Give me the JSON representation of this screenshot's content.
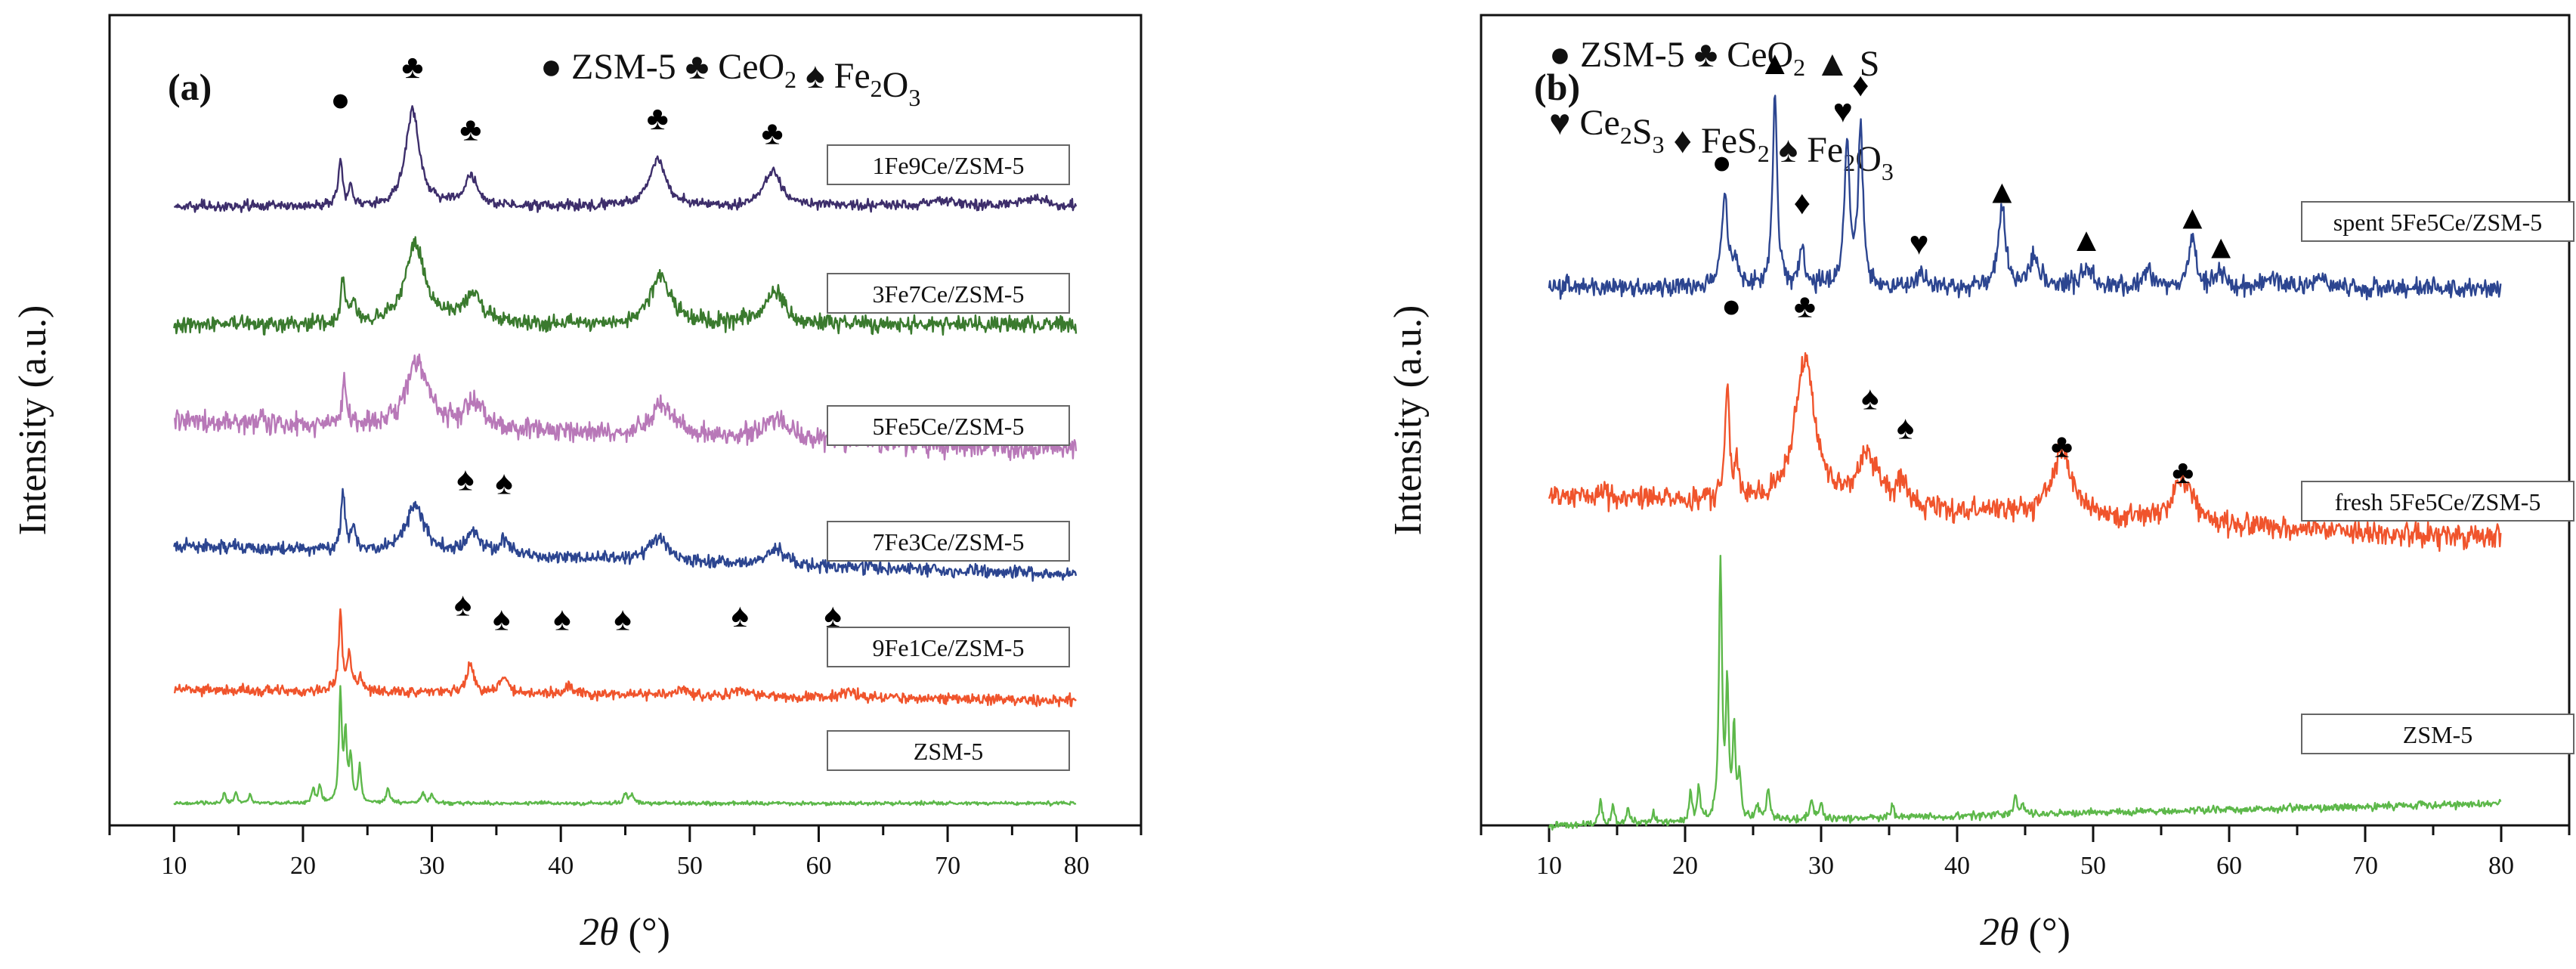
{
  "chart_data": [
    {
      "type": "line",
      "panel_label": "(a)",
      "xlabel_italic": "2θ",
      "xlabel_unit": " (°)",
      "ylabel": "Intensity (a.u.)",
      "xlim": [
        5,
        85
      ],
      "ylim": [
        0,
        110
      ],
      "x_ticks": [
        10,
        20,
        30,
        40,
        50,
        60,
        70,
        80
      ],
      "legend": [
        {
          "symbol": "●",
          "name": "ZSM-5"
        },
        {
          "symbol": "♣",
          "name": "CeO",
          "sub": "2"
        },
        {
          "symbol": "♠",
          "name": "Fe",
          "sub": "2",
          "name2": "O",
          "sub2": "3"
        }
      ],
      "series": [
        {
          "name": "1Fe9Ce/ZSM-5",
          "color": "#3d2e6b",
          "baseline": 84,
          "decay": 0,
          "noise": 0.7,
          "peaks": [
            [
              22.9,
              6.5,
              0.18
            ],
            [
              23.7,
              2.5,
              0.2
            ],
            [
              28.5,
              13,
              0.65
            ],
            [
              33.0,
              4,
              0.55
            ],
            [
              47.5,
              6.5,
              0.75
            ],
            [
              56.4,
              5,
              0.8
            ],
            [
              69.5,
              0.8,
              1.2
            ],
            [
              76.5,
              1,
              1.2
            ]
          ],
          "markers": [
            {
              "x": 22.9,
              "y": 97,
              "sym": "●"
            },
            {
              "x": 28.5,
              "y": 101.5,
              "sym": "♣"
            },
            {
              "x": 33.0,
              "y": 93,
              "sym": "♣"
            },
            {
              "x": 47.5,
              "y": 94.5,
              "sym": "♣"
            },
            {
              "x": 56.4,
              "y": 92.5,
              "sym": "♣"
            }
          ]
        },
        {
          "name": "3Fe7Ce/ZSM-5",
          "color": "#3a7a2e",
          "baseline": 68,
          "decay": 0,
          "noise": 1.1,
          "peaks": [
            [
              23.1,
              6,
              0.2
            ],
            [
              23.9,
              3,
              0.2
            ],
            [
              28.7,
              11,
              0.9
            ],
            [
              33.2,
              4,
              0.8
            ],
            [
              47.7,
              6.5,
              0.9
            ],
            [
              56.6,
              4.5,
              0.9
            ]
          ],
          "markers": []
        },
        {
          "name": "5Fe5Ce/ZSM-5",
          "color": "#b878b8",
          "baseline": 51,
          "decay": 4,
          "noise": 1.4,
          "peaks": [
            [
              23.2,
              6,
              0.2
            ],
            [
              28.8,
              9,
              1.0
            ],
            [
              33.3,
              3.5,
              1.0
            ],
            [
              47.9,
              4,
              1.1
            ],
            [
              56.6,
              3,
              1.1
            ]
          ],
          "markers": []
        },
        {
          "name": "7Fe3Ce/ZSM-5",
          "color": "#2c4590",
          "baseline": 34,
          "decay": 4,
          "noise": 0.9,
          "peaks": [
            [
              23.1,
              7.5,
              0.18
            ],
            [
              23.9,
              3.5,
              0.2
            ],
            [
              28.7,
              6.5,
              0.85
            ],
            [
              33.2,
              3,
              0.7
            ],
            [
              35.7,
              1.8,
              0.5
            ],
            [
              47.6,
              3,
              0.9
            ],
            [
              56.7,
              2,
              0.9
            ]
          ],
          "markers": [
            {
              "x": 32.6,
              "y": 45.5,
              "sym": "♠"
            },
            {
              "x": 35.6,
              "y": 45,
              "sym": "♠"
            }
          ]
        },
        {
          "name": "9Fe1Ce/ZSM-5",
          "color": "#f0542c",
          "baseline": 17,
          "decay": 1.5,
          "noise": 0.7,
          "peaks": [
            [
              22.9,
              11,
              0.15
            ],
            [
              23.6,
              5,
              0.2
            ],
            [
              24.5,
              2,
              0.2
            ],
            [
              33.0,
              4,
              0.3
            ],
            [
              35.6,
              2,
              0.4
            ],
            [
              40.7,
              1,
              0.4
            ],
            [
              49.5,
              1,
              0.5
            ],
            [
              54.0,
              1,
              0.5
            ],
            [
              62.4,
              1,
              0.5
            ]
          ],
          "markers": [
            {
              "x": 32.4,
              "y": 28.5,
              "sym": "♠"
            },
            {
              "x": 35.4,
              "y": 26.5,
              "sym": "♠"
            },
            {
              "x": 40.1,
              "y": 26.5,
              "sym": "♠"
            },
            {
              "x": 44.8,
              "y": 26.5,
              "sym": "♠"
            },
            {
              "x": 53.9,
              "y": 27,
              "sym": "♠"
            },
            {
              "x": 61.1,
              "y": 27,
              "sym": "♠"
            }
          ]
        },
        {
          "name": "ZSM-5",
          "color": "#5db84a",
          "baseline": 3,
          "decay": 0,
          "noise": 0.25,
          "peaks": [
            [
              13.9,
              1.5,
              0.12
            ],
            [
              14.8,
              1.5,
              0.12
            ],
            [
              15.9,
              1.2,
              0.12
            ],
            [
              20.8,
              2,
              0.12
            ],
            [
              21.3,
              2.5,
              0.12
            ],
            [
              22.9,
              15,
              0.13
            ],
            [
              23.3,
              9,
              0.12
            ],
            [
              23.7,
              6,
              0.13
            ],
            [
              24.4,
              5,
              0.13
            ],
            [
              26.6,
              2,
              0.15
            ],
            [
              29.3,
              1.5,
              0.15
            ],
            [
              30.0,
              1.2,
              0.15
            ],
            [
              45.0,
              1.5,
              0.15
            ],
            [
              45.5,
              1,
              0.15
            ]
          ],
          "markers": []
        }
      ]
    },
    {
      "type": "line",
      "panel_label": "(b)",
      "xlabel_italic": "2θ",
      "xlabel_unit": " (°)",
      "ylabel": "Intensity (a.u.)",
      "xlim": [
        5,
        85
      ],
      "ylim": [
        0,
        110
      ],
      "x_ticks": [
        10,
        20,
        30,
        40,
        50,
        60,
        70,
        80
      ],
      "legend": [
        {
          "symbol": "●",
          "name": "ZSM-5"
        },
        {
          "symbol": "♣",
          "name": "CeO",
          "sub": "2"
        },
        {
          "symbol": "▲",
          "name": "S"
        },
        {
          "symbol": "♥",
          "name": "Ce",
          "sub": "2",
          "name2": "S",
          "sub2": "3"
        },
        {
          "symbol": "♦",
          "name": "FeS",
          "sub": "2"
        },
        {
          "symbol": "♠",
          "name": "Fe",
          "sub": "2",
          "name2": "O",
          "sub2": "3"
        }
      ],
      "series": [
        {
          "name": "spent 5Fe5Ce/ZSM-5",
          "color": "#2c4590",
          "baseline": 73,
          "decay": 0,
          "noise": 1.3,
          "peaks": [
            [
              22.9,
              13,
              0.25
            ],
            [
              23.7,
              4,
              0.2
            ],
            [
              26.6,
              26,
              0.2
            ],
            [
              28.6,
              6,
              0.2
            ],
            [
              31.9,
              19,
              0.25
            ],
            [
              32.9,
              21,
              0.22
            ],
            [
              37.3,
              2,
              0.3
            ],
            [
              43.3,
              11,
              0.3
            ],
            [
              45.7,
              4,
              0.5
            ],
            [
              49.5,
              3,
              0.4
            ],
            [
              54.0,
              2,
              0.5
            ],
            [
              57.3,
              7,
              0.3
            ],
            [
              59.4,
              2,
              0.4
            ],
            [
              63.0,
              1.5,
              0.6
            ],
            [
              66.8,
              1.5,
              0.6
            ]
          ],
          "markers": [
            {
              "x": 22.7,
              "y": 88.5,
              "sym": "●"
            },
            {
              "x": 26.6,
              "y": 102,
              "sym": "▲"
            },
            {
              "x": 28.6,
              "y": 83,
              "sym": "♦"
            },
            {
              "x": 31.6,
              "y": 95.5,
              "sym": "♥"
            },
            {
              "x": 32.9,
              "y": 99,
              "sym": "♦"
            },
            {
              "x": 37.2,
              "y": 77.5,
              "sym": "♥"
            },
            {
              "x": 43.3,
              "y": 84.5,
              "sym": "▲"
            },
            {
              "x": 49.5,
              "y": 78,
              "sym": "▲"
            },
            {
              "x": 57.3,
              "y": 81,
              "sym": "▲"
            },
            {
              "x": 59.4,
              "y": 77,
              "sym": "▲"
            }
          ]
        },
        {
          "name": "fresh 5Fe5Ce/ZSM-5",
          "color": "#f0542c",
          "baseline": 39,
          "decay": 6,
          "noise": 1.6,
          "peaks": [
            [
              23.1,
              15,
              0.2
            ],
            [
              23.8,
              4,
              0.2
            ],
            [
              28.8,
              20,
              0.85
            ],
            [
              33.4,
              7,
              0.9
            ],
            [
              35.9,
              3,
              0.5
            ],
            [
              47.7,
              9,
              0.9
            ],
            [
              56.6,
              6,
              0.9
            ]
          ],
          "markers": [
            {
              "x": 23.4,
              "y": 69,
              "sym": "●"
            },
            {
              "x": 28.8,
              "y": 69,
              "sym": "♣"
            },
            {
              "x": 33.6,
              "y": 56.5,
              "sym": "♠"
            },
            {
              "x": 36.2,
              "y": 52.5,
              "sym": "♠"
            },
            {
              "x": 47.7,
              "y": 50,
              "sym": "♣"
            },
            {
              "x": 56.6,
              "y": 46.5,
              "sym": "♣"
            }
          ]
        },
        {
          "name": "ZSM-5",
          "color": "#5db84a",
          "baseline": 3,
          "decay": -3,
          "noise": 0.5,
          "peaks": [
            [
              13.8,
              3,
              0.12
            ],
            [
              14.7,
              2.5,
              0.12
            ],
            [
              15.8,
              2,
              0.12
            ],
            [
              17.7,
              1.5,
              0.12
            ],
            [
              20.4,
              4,
              0.12
            ],
            [
              21.0,
              5,
              0.12
            ],
            [
              22.6,
              35,
              0.13
            ],
            [
              23.1,
              18,
              0.12
            ],
            [
              23.6,
              12,
              0.12
            ],
            [
              24.0,
              6,
              0.12
            ],
            [
              25.3,
              2,
              0.15
            ],
            [
              26.1,
              4,
              0.15
            ],
            [
              29.3,
              2.5,
              0.15
            ],
            [
              30.0,
              2,
              0.15
            ],
            [
              35.2,
              1.5,
              0.15
            ],
            [
              44.3,
              2.5,
              0.12
            ],
            [
              44.8,
              1.5,
              0.12
            ]
          ],
          "markers": []
        }
      ]
    }
  ]
}
